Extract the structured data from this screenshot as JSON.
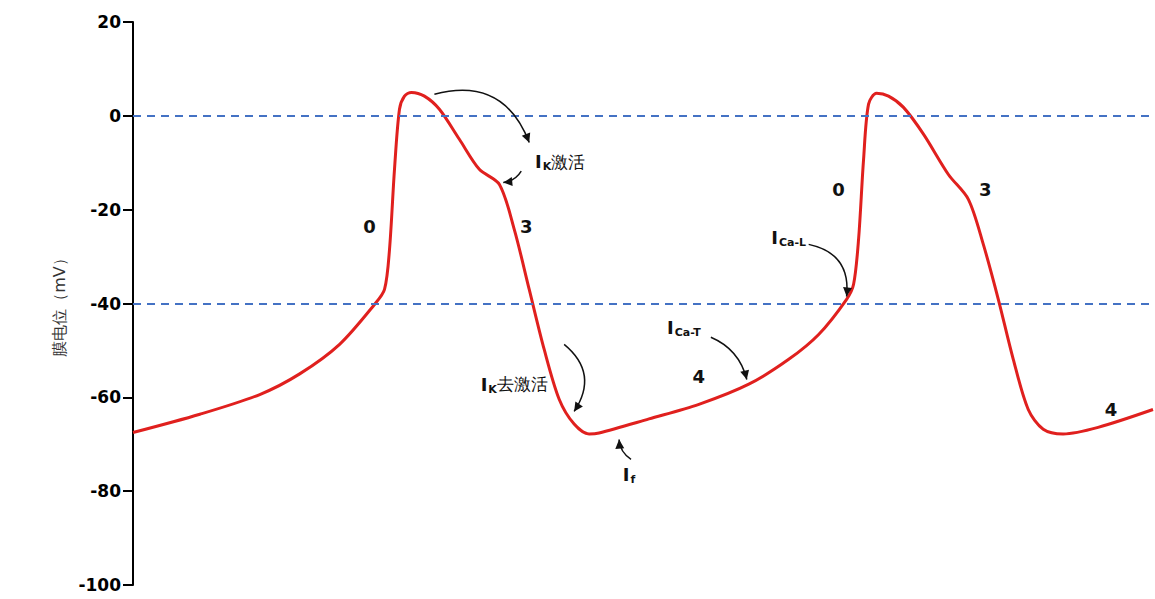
{
  "chart_data": {
    "type": "line",
    "y_label": "膜电位（mV）",
    "ylim": [
      -100,
      20
    ],
    "yticks": [
      -100,
      -80,
      -60,
      -40,
      -20,
      0,
      20
    ],
    "xlim": [
      0,
      1022
    ],
    "tick_labels": "y",
    "grid": false,
    "color": "#e0201e",
    "x": [
      0,
      67,
      127,
      167,
      207,
      242,
      252,
      257,
      262,
      267,
      272,
      279,
      292,
      307,
      327,
      347,
      367,
      382,
      397,
      412,
      427,
      442,
      457,
      467,
      517,
      567,
      617,
      657,
      687,
      715,
      722,
      727,
      732,
      737,
      745,
      757,
      772,
      792,
      817,
      837,
      852,
      867,
      882,
      897,
      912,
      932,
      967,
      1022
    ],
    "values": [
      -67.5,
      -63.6,
      -59.4,
      -55.0,
      -48.7,
      -40.2,
      -37.0,
      -28.5,
      -11.4,
      1.4,
      4.2,
      5.0,
      4.2,
      1.4,
      -5.0,
      -11.4,
      -14.6,
      -24.2,
      -37.0,
      -49.8,
      -60.4,
      -65.7,
      -67.8,
      -67.6,
      -64.6,
      -61.5,
      -57.2,
      -51.9,
      -46.6,
      -39.1,
      -35.9,
      -26.3,
      -9.3,
      2.5,
      4.8,
      4.2,
      1.8,
      -3.9,
      -12.5,
      -17.8,
      -27.4,
      -39.1,
      -51.9,
      -62.6,
      -66.8,
      -67.8,
      -66.4,
      -62.6
    ],
    "reference_lines": [
      {
        "y": 0,
        "color": "#4472c4",
        "line_style": "dashed"
      },
      {
        "y": -40,
        "color": "#4472c4",
        "line_style": "dashed"
      }
    ],
    "annotations": [
      {
        "text": "0",
        "x": 237,
        "y": -23.6
      },
      {
        "text": "3",
        "x": 394,
        "y": -23.6
      },
      {
        "text": "4",
        "x": 567,
        "y": -55.5
      },
      {
        "text": "0",
        "x": 707,
        "y": -15.7
      },
      {
        "text": "3",
        "x": 854,
        "y": -15.7
      },
      {
        "text": "4",
        "x": 980,
        "y": -62.6
      },
      {
        "text": "I",
        "sub": "K",
        "suffix": "激活",
        "x": 428,
        "y": -9.8,
        "arrows": [
          [
            302,
            4.6,
            397,
            -5.7
          ],
          [
            389,
            -11.8,
            371,
            -14.2
          ]
        ]
      },
      {
        "text": "I",
        "sub": "K",
        "suffix": "去激活",
        "x": 382,
        "y": -57.2,
        "arrows": [
          [
            432,
            -48.7,
            442,
            -63.0
          ]
        ]
      },
      {
        "text": "I",
        "sub": "Ca-T",
        "x": 552,
        "y": -45.1,
        "arrows": [
          [
            579,
            -47.2,
            615,
            -56.2
          ]
        ]
      },
      {
        "text": "I",
        "sub": "Ca-L",
        "x": 657,
        "y": -25.9,
        "arrows": [
          [
            677,
            -27.4,
            715,
            -38.5
          ]
        ]
      },
      {
        "text": "I",
        "sub": "f",
        "x": 497,
        "y": -76.4,
        "arrows": [
          [
            499,
            -73.2,
            487,
            -69.0
          ]
        ]
      }
    ]
  }
}
